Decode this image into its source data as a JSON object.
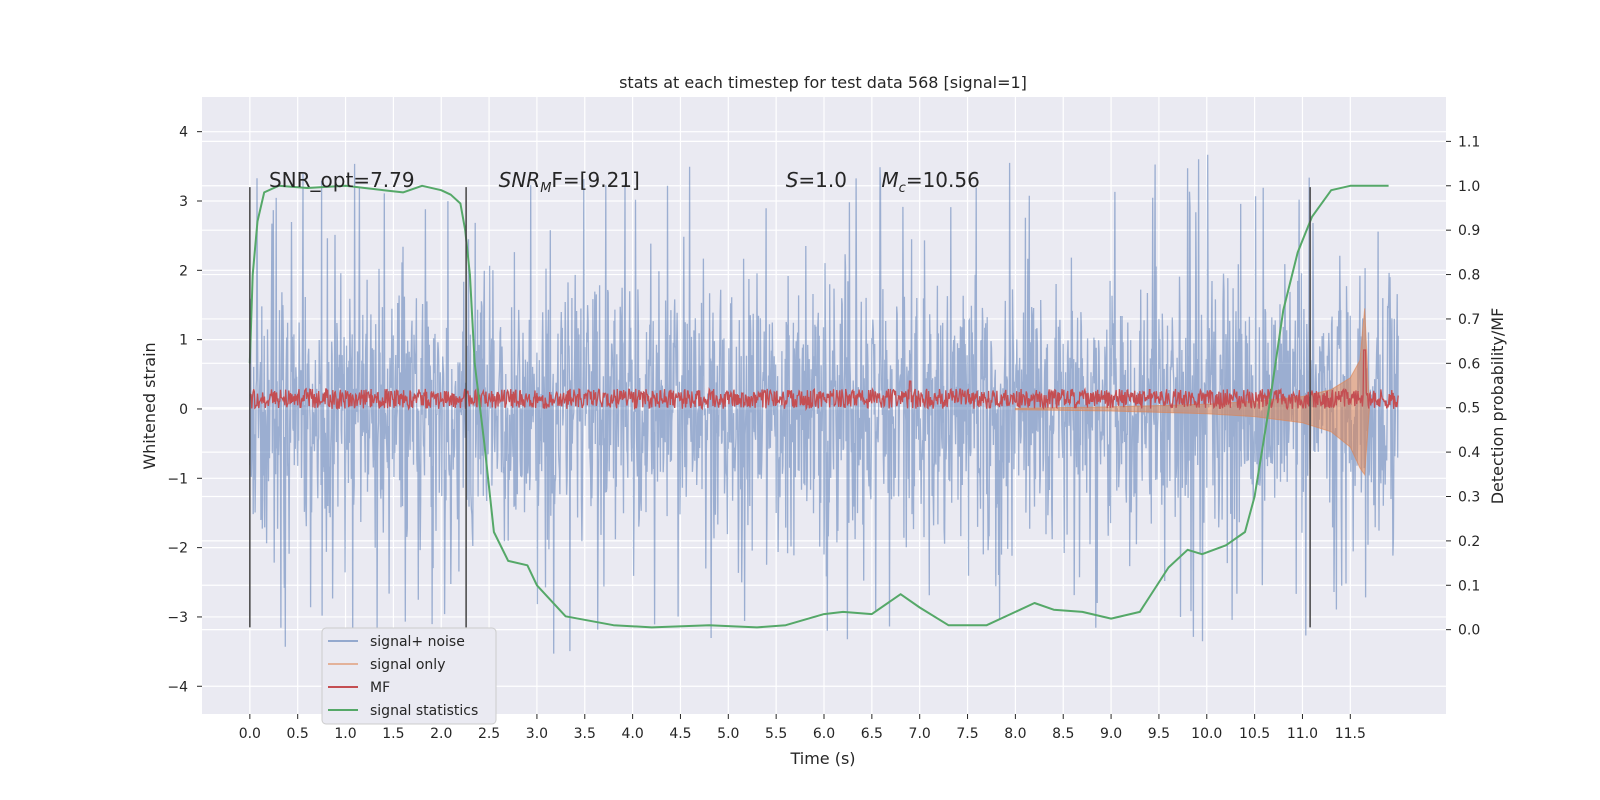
{
  "chart_data": {
    "type": "line",
    "title": "stats at each timestep for test data 568 [signal=1]",
    "xlabel": "Time (s)",
    "ylabel_left": "Whitened strain",
    "ylabel_right": "Detection probability/MF",
    "xlim": [
      -0.5,
      12.5
    ],
    "ylim_left": [
      -4.4,
      4.5
    ],
    "ylim_right": [
      -0.19,
      1.2
    ],
    "x_ticks": [
      0.0,
      0.5,
      1.0,
      1.5,
      2.0,
      2.5,
      3.0,
      3.5,
      4.0,
      4.5,
      5.0,
      5.5,
      6.0,
      6.5,
      7.0,
      7.5,
      8.0,
      8.5,
      9.0,
      9.5,
      10.0,
      10.5,
      11.0,
      11.5
    ],
    "x_tick_labels": [
      "0.0",
      "0.5",
      "1.0",
      "1.5",
      "2.0",
      "2.5",
      "3.0",
      "3.5",
      "4.0",
      "4.5",
      "5.0",
      "5.5",
      "6.0",
      "6.5",
      "7.0",
      "7.5",
      "8.0",
      "8.5",
      "9.0",
      "9.5",
      "10.0",
      "10.5",
      "11.0",
      "11.5"
    ],
    "y_left_ticks": [
      4,
      3,
      2,
      1,
      0,
      -1,
      -2,
      -3,
      -4
    ],
    "y_left_tick_labels": [
      "4",
      "3",
      "2",
      "1",
      "0",
      "−1",
      "−2",
      "−3",
      "−4"
    ],
    "y_right_ticks": [
      1.1,
      1.0,
      0.9,
      0.8,
      0.7,
      0.6,
      0.5,
      0.4,
      0.3,
      0.2,
      0.1,
      0.0
    ],
    "y_right_tick_labels": [
      "1.1",
      "1.0",
      "0.9",
      "0.8",
      "0.7",
      "0.6",
      "0.5",
      "0.4",
      "0.3",
      "0.2",
      "0.1",
      "0.0"
    ],
    "annotations": [
      {
        "prefix": "SNR_opt=7.79",
        "sub": "",
        "suffix": "",
        "italic_prefix": false,
        "x": 0.2,
        "y": 3.3
      },
      {
        "prefix": "SNR",
        "sub": "M",
        "suffix": "F=[9.21]",
        "italic_prefix": true,
        "x": 2.6,
        "y": 3.3
      },
      {
        "prefix": "S",
        "sub": "",
        "suffix": "=1.0",
        "italic_prefix": true,
        "x": 5.6,
        "y": 3.3
      },
      {
        "prefix": "M",
        "sub": "c",
        "suffix": "=10.56",
        "italic_prefix": true,
        "x": 6.6,
        "y": 3.3
      }
    ],
    "vertical_markers": [
      {
        "x": 0.0,
        "y0": -3.15,
        "y1": 3.2
      },
      {
        "x": 2.26,
        "y0": -3.15,
        "y1": 3.2
      },
      {
        "x": 11.08,
        "y0": -3.15,
        "y1": 3.2
      }
    ],
    "noise_envelope_left": {
      "x": [
        0.0,
        1.0,
        2.0,
        3.0,
        4.0,
        5.0,
        6.0,
        7.0,
        8.0,
        9.0,
        10.0,
        11.0,
        12.0
      ],
      "upper": [
        2.8,
        3.1,
        3.2,
        2.9,
        3.0,
        2.9,
        3.0,
        3.1,
        3.1,
        3.0,
        3.1,
        3.0,
        2.3
      ],
      "lower": [
        -2.9,
        -2.9,
        -2.7,
        -3.0,
        -2.8,
        -2.9,
        -2.8,
        -2.9,
        -2.9,
        -2.8,
        -2.9,
        -2.8,
        -2.1
      ]
    },
    "series": [
      {
        "name": "signal+ noise",
        "color": "#4c72b0",
        "axis": "left",
        "x_range": [
          0.0,
          12.0
        ]
      },
      {
        "name": "signal only",
        "color": "#dd8452",
        "axis": "left",
        "x": [
          8.0,
          9.0,
          10.0,
          10.5,
          11.0,
          11.3,
          11.5,
          11.6,
          11.65,
          11.7
        ],
        "upper": [
          0.01,
          0.03,
          0.07,
          0.11,
          0.18,
          0.28,
          0.45,
          0.7,
          1.45,
          0.0
        ],
        "lower": [
          -0.01,
          -0.03,
          -0.07,
          -0.11,
          -0.2,
          -0.33,
          -0.55,
          -0.85,
          -0.95,
          0.0
        ]
      },
      {
        "name": "MF",
        "color": "#c44e52",
        "axis": "right",
        "x_range": [
          0.0,
          12.0
        ],
        "baseline": 0.52,
        "spikes": [
          {
            "x": 6.9,
            "y": 0.56
          },
          {
            "x": 11.65,
            "y": 0.63
          }
        ]
      },
      {
        "name": "signal statistics",
        "color": "#55a868",
        "axis": "right",
        "x": [
          0.0,
          0.03,
          0.08,
          0.15,
          0.3,
          0.6,
          1.0,
          1.4,
          1.6,
          1.8,
          2.0,
          2.1,
          2.2,
          2.25,
          2.3,
          2.35,
          2.45,
          2.55,
          2.7,
          2.9,
          3.0,
          3.3,
          3.8,
          4.2,
          4.8,
          5.0,
          5.3,
          5.6,
          6.0,
          6.2,
          6.5,
          6.8,
          7.0,
          7.3,
          7.7,
          8.0,
          8.2,
          8.4,
          8.7,
          9.0,
          9.3,
          9.6,
          9.8,
          9.95,
          10.2,
          10.4,
          10.5,
          10.65,
          10.8,
          10.95,
          11.1,
          11.3,
          11.5,
          11.7,
          11.9
        ],
        "y": [
          0.6,
          0.8,
          0.92,
          0.985,
          1.0,
          0.995,
          1.0,
          0.99,
          0.985,
          1.0,
          0.99,
          0.98,
          0.96,
          0.9,
          0.8,
          0.6,
          0.42,
          0.22,
          0.155,
          0.145,
          0.1,
          0.03,
          0.01,
          0.005,
          0.01,
          0.008,
          0.005,
          0.01,
          0.035,
          0.04,
          0.035,
          0.08,
          0.05,
          0.01,
          0.01,
          0.04,
          0.06,
          0.045,
          0.04,
          0.025,
          0.04,
          0.14,
          0.18,
          0.17,
          0.19,
          0.22,
          0.3,
          0.5,
          0.72,
          0.85,
          0.93,
          0.99,
          1.0,
          1.0,
          1.0
        ]
      }
    ],
    "legend": {
      "location": "lower-left",
      "entries": [
        "signal+ noise",
        "signal only",
        "MF",
        "signal statistics"
      ]
    },
    "grid": true
  },
  "colors": {
    "axes_bg": "#eaeaf2",
    "grid": "#ffffff",
    "text": "#262626",
    "marker": "#444444"
  }
}
